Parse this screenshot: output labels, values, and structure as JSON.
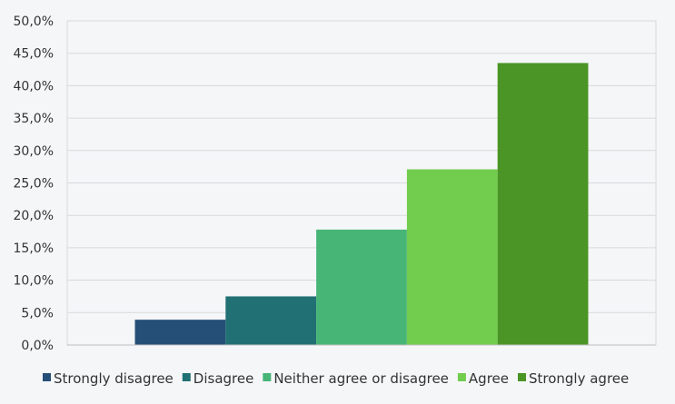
{
  "chart_data": {
    "type": "bar",
    "title": "",
    "xlabel": "",
    "ylabel": "",
    "ylim": [
      0,
      50
    ],
    "y_ticks": [
      "0,0%",
      "5,0%",
      "10,0%",
      "15,0%",
      "20,0%",
      "25,0%",
      "30,0%",
      "35,0%",
      "40,0%",
      "45,0%",
      "50,0%"
    ],
    "grid": true,
    "legend_position": "bottom",
    "series": [
      {
        "name": "Strongly disagree",
        "value": 3.9,
        "color": "#264f78"
      },
      {
        "name": "Disagree",
        "value": 7.5,
        "color": "#217073"
      },
      {
        "name": "Neither agree or disagree",
        "value": 17.8,
        "color": "#47b576"
      },
      {
        "name": "Agree",
        "value": 27.1,
        "color": "#72cd4f"
      },
      {
        "name": "Strongly agree",
        "value": 43.5,
        "color": "#4a9525"
      }
    ]
  }
}
